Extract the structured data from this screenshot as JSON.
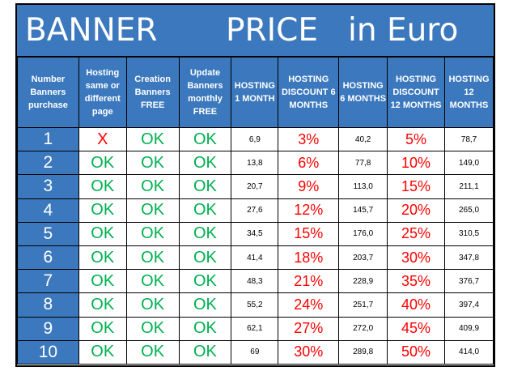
{
  "title": {
    "banner": "BANNER",
    "price": "PRICE",
    "currency": "in Euro"
  },
  "headers": [
    "Number Banners purchase",
    "Hosting same or different page",
    "Creation Banners FREE",
    "Update Banners monthly FREE",
    "HOSTING 1 MONTH",
    "HOSTING DISCOUNT 6 MONTHS",
    "HOSTING 6 MONTHS",
    "HOSTING DISCOUNT 12 MONTHS",
    "HOSTING 12 MONTHS"
  ],
  "rows": [
    {
      "number": "1",
      "same_page": "X",
      "creation": "OK",
      "update": "OK",
      "m1": "6,9",
      "disc6": "3%",
      "m6": "40,2",
      "disc12": "5%",
      "m12": "78,7"
    },
    {
      "number": "2",
      "same_page": "OK",
      "creation": "OK",
      "update": "OK",
      "m1": "13,8",
      "disc6": "6%",
      "m6": "77,8",
      "disc12": "10%",
      "m12": "149,0"
    },
    {
      "number": "3",
      "same_page": "OK",
      "creation": "OK",
      "update": "OK",
      "m1": "20,7",
      "disc6": "9%",
      "m6": "113,0",
      "disc12": "15%",
      "m12": "211,1"
    },
    {
      "number": "4",
      "same_page": "OK",
      "creation": "OK",
      "update": "OK",
      "m1": "27,6",
      "disc6": "12%",
      "m6": "145,7",
      "disc12": "20%",
      "m12": "265,0"
    },
    {
      "number": "5",
      "same_page": "OK",
      "creation": "OK",
      "update": "OK",
      "m1": "34,5",
      "disc6": "15%",
      "m6": "176,0",
      "disc12": "25%",
      "m12": "310,5"
    },
    {
      "number": "6",
      "same_page": "OK",
      "creation": "OK",
      "update": "OK",
      "m1": "41,4",
      "disc6": "18%",
      "m6": "203,7",
      "disc12": "30%",
      "m12": "347,8"
    },
    {
      "number": "7",
      "same_page": "OK",
      "creation": "OK",
      "update": "OK",
      "m1": "48,3",
      "disc6": "21%",
      "m6": "228,9",
      "disc12": "35%",
      "m12": "376,7"
    },
    {
      "number": "8",
      "same_page": "OK",
      "creation": "OK",
      "update": "OK",
      "m1": "55,2",
      "disc6": "24%",
      "m6": "251,7",
      "disc12": "40%",
      "m12": "397,4"
    },
    {
      "number": "9",
      "same_page": "OK",
      "creation": "OK",
      "update": "OK",
      "m1": "62,1",
      "disc6": "27%",
      "m6": "272,0",
      "disc12": "45%",
      "m12": "409,9"
    },
    {
      "number": "10",
      "same_page": "OK",
      "creation": "OK",
      "update": "OK",
      "m1": "69",
      "disc6": "30%",
      "m6": "289,8",
      "disc12": "50%",
      "m12": "414,0"
    }
  ],
  "colors": {
    "header_bg": "#3b78bd",
    "ok_green": "#00b050",
    "alert_red": "#ff0000",
    "header_text": "#ffffff"
  }
}
